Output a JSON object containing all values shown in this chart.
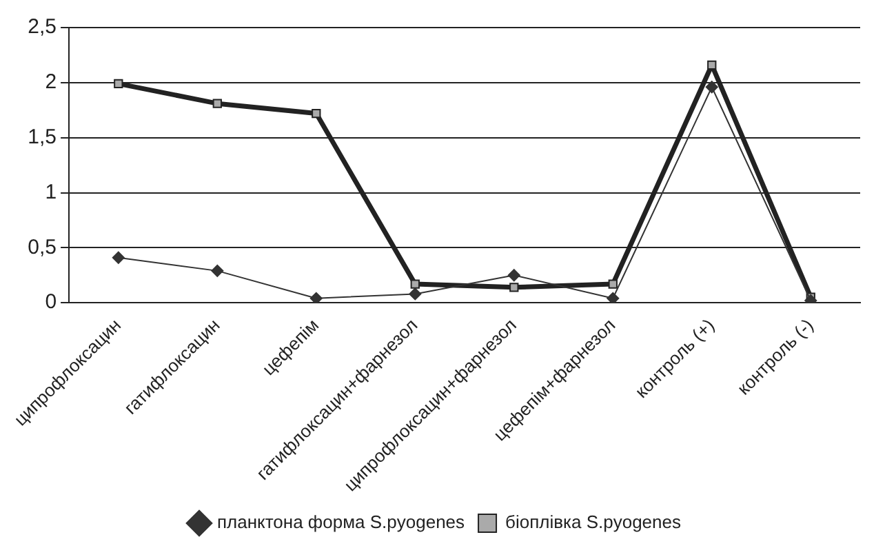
{
  "chart_data": {
    "type": "line",
    "categories": [
      "ципрофлоксацин",
      "гатифлоксацин",
      "цефепім",
      "гатифлоксацин+фарнезол",
      "ципрофлоксацин+фарнезол",
      "цефепім+фарнезол",
      "контроль (+)",
      "контроль (-)"
    ],
    "series": [
      {
        "name": "планктона форма S.pyogenes",
        "color": "#333333",
        "marker": "diamond",
        "values": [
          0.41,
          0.29,
          0.04,
          0.08,
          0.25,
          0.04,
          1.96,
          0.02
        ]
      },
      {
        "name": "біоплівка S.pyogenes",
        "color": "#222222",
        "marker": "square",
        "values": [
          1.99,
          1.81,
          1.72,
          0.17,
          0.14,
          0.17,
          2.16,
          0.05
        ]
      }
    ],
    "ylim": [
      0,
      2.5
    ],
    "yticks": [
      0,
      {
        "value": 0.5,
        "label": "0,5"
      },
      1,
      {
        "value": 1.5,
        "label": "1,5"
      },
      2,
      {
        "value": 2.5,
        "label": "2,5"
      }
    ],
    "grid": "y",
    "legend": "bottom",
    "line_style": "solid"
  }
}
